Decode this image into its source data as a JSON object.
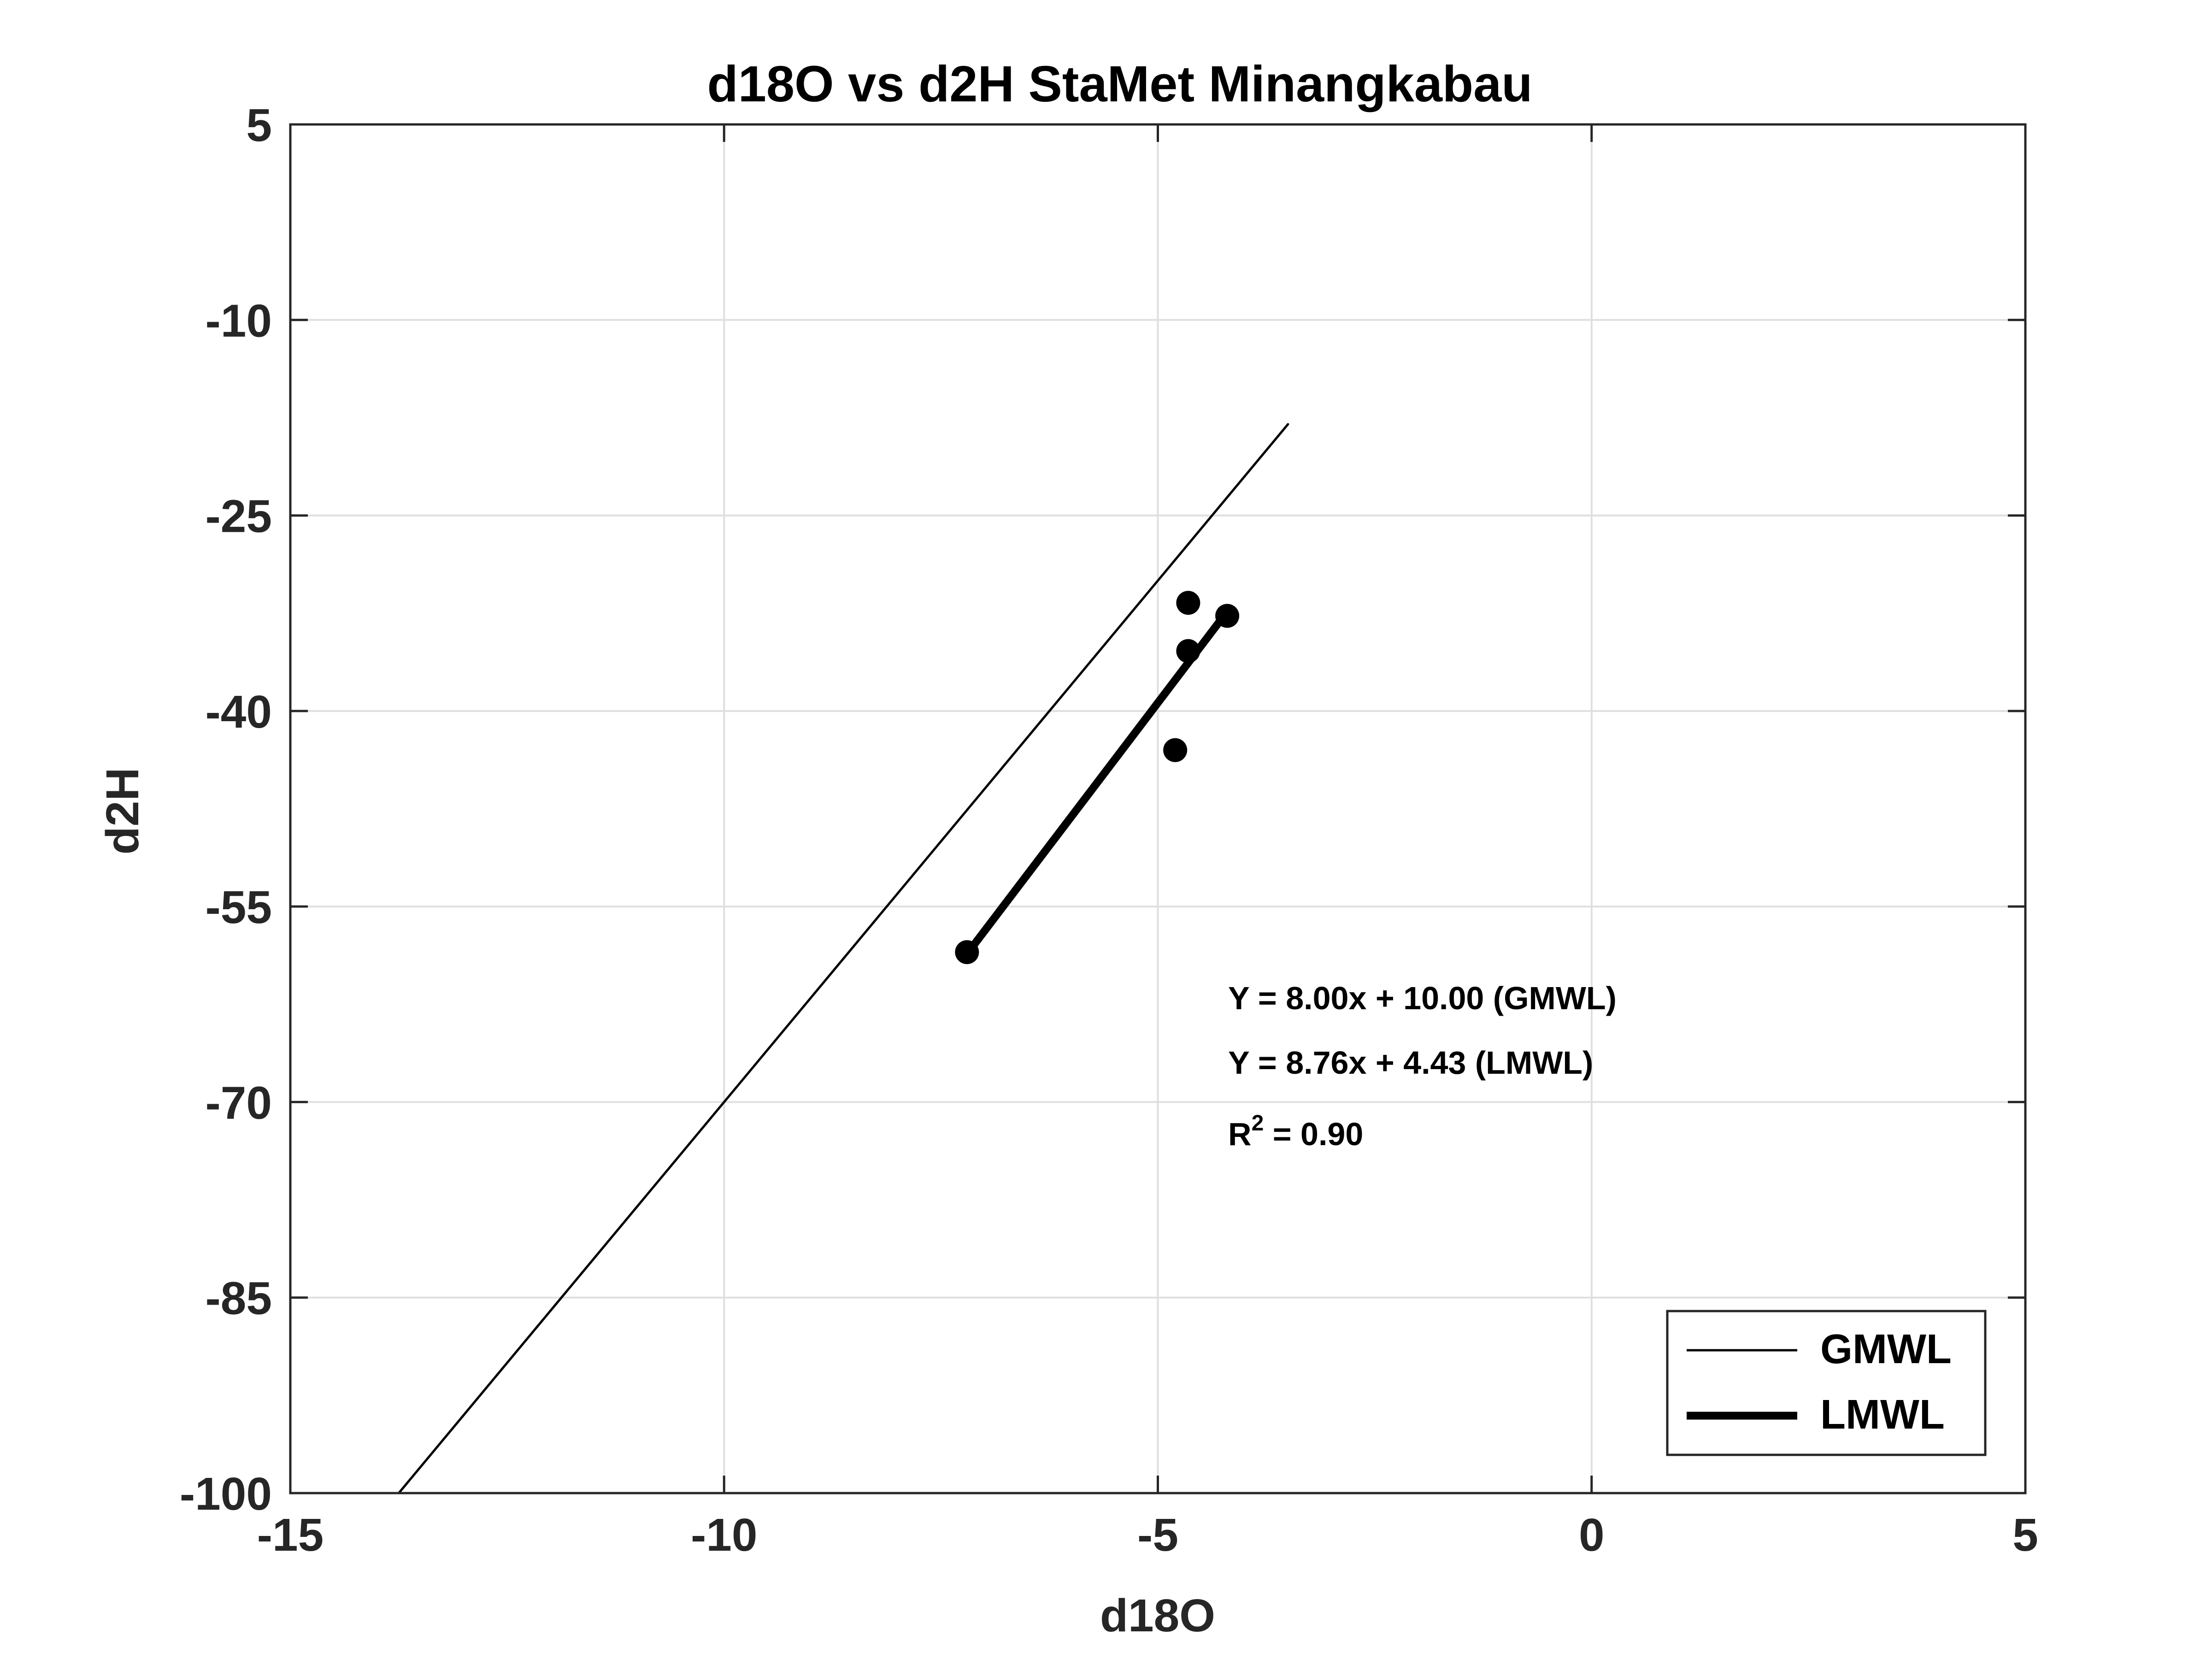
{
  "chart_data": {
    "type": "scatter",
    "title": "d18O vs d2H StaMet Minangkabau",
    "xlabel": "d18O",
    "ylabel": "d2H",
    "xlim": [
      -15,
      5
    ],
    "ylim": [
      -100,
      5
    ],
    "xticks": [
      -15,
      -10,
      -5,
      0,
      5
    ],
    "xtick_labels": [
      "-15",
      "-10",
      "-5",
      "0",
      "5"
    ],
    "yticks": [
      -100,
      -85,
      -70,
      -55,
      -40,
      -25,
      -10,
      5
    ],
    "ytick_labels": [
      "-100",
      "-85",
      "-70",
      "-55",
      "-40",
      "-25",
      "-10",
      "5"
    ],
    "grid": true,
    "legend_position": "bottom-right",
    "points": {
      "x": [
        -7.2,
        -4.65,
        -4.65,
        -4.2,
        -4.8
      ],
      "y": [
        -58.5,
        -31.7,
        -35.4,
        -32.7,
        -43.0
      ]
    },
    "series": [
      {
        "name": "GMWL",
        "kind": "line",
        "slope": 8.0,
        "intercept": 10.0,
        "x_range": [
          -13.75,
          -3.5
        ],
        "line_weight": "thin"
      },
      {
        "name": "LMWL",
        "kind": "line",
        "slope": 8.76,
        "intercept": 4.43,
        "x_range": [
          -7.2,
          -4.2
        ],
        "line_weight": "thick"
      }
    ],
    "annotations": [
      "Y = 8.00x + 10.00 (GMWL)",
      "Y = 8.76x + 4.43 (LMWL)"
    ],
    "r2_annotation": {
      "prefix": "R",
      "superscript": "2",
      "suffix": " = 0.90"
    },
    "colors": {
      "data": "#000000",
      "axis": "#262626",
      "grid": "#dfdfdf"
    }
  }
}
